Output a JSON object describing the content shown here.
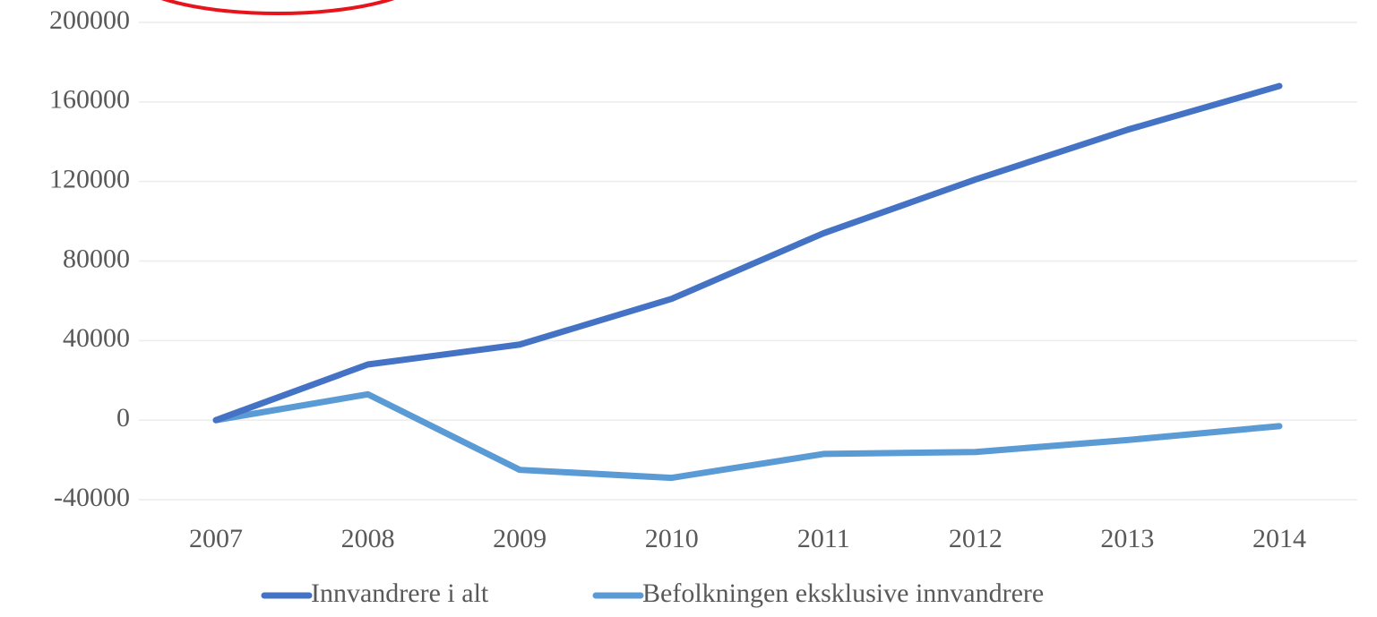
{
  "chart_data": {
    "type": "line",
    "categories": [
      "2007",
      "2008",
      "2009",
      "2010",
      "2011",
      "2012",
      "2013",
      "2014"
    ],
    "series": [
      {
        "name": "Innvandrere i alt",
        "color": "#4472c4",
        "values": [
          0,
          28000,
          38000,
          61000,
          94000,
          121000,
          146000,
          168000
        ]
      },
      {
        "name": "Befolkningen eksklusive innvandrere",
        "color": "#5b9bd5",
        "values": [
          0,
          13000,
          -25000,
          -29000,
          -17000,
          -16000,
          -10000,
          -3000
        ]
      }
    ],
    "ylim": [
      -40000,
      200000
    ],
    "yticks": [
      -40000,
      0,
      40000,
      80000,
      120000,
      160000,
      200000
    ],
    "grid": true,
    "legend": "bottom"
  }
}
